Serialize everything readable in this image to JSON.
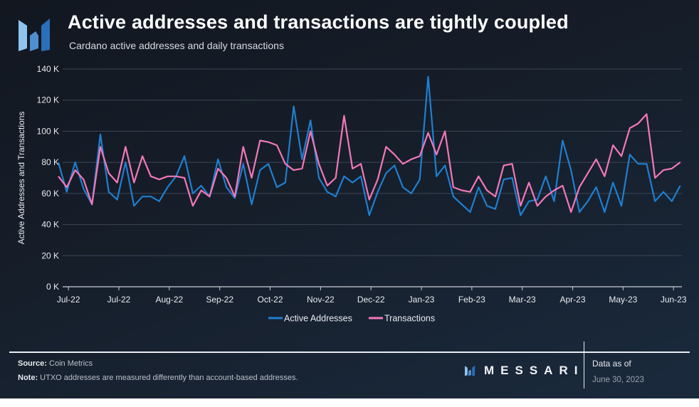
{
  "header": {
    "title": "Active addresses and transactions are tightly coupled",
    "subtitle": "Cardano active addresses and daily transactions"
  },
  "footer": {
    "source_label": "Source:",
    "source_value": "Coin Metrics",
    "note_label": "Note:",
    "note_value": "UTXO addresses are measured differently than account-based addresses.",
    "brand": "MESSARI",
    "data_as_of_label": "Data as of",
    "data_as_of_date": "June 30, 2023"
  },
  "chart_data": {
    "type": "line",
    "title": "Active addresses and transactions are tightly coupled",
    "subtitle": "Cardano active addresses and daily transactions",
    "xlabel": "",
    "ylabel": "Active Addresses and Transactions",
    "ylim": [
      0,
      140000
    ],
    "xlim": [
      "2022-06-25",
      "2023-07-01"
    ],
    "grid": true,
    "legend_position": "bottom",
    "y_ticks": [
      {
        "value": 0,
        "label": "0 K"
      },
      {
        "value": 20000,
        "label": "20 K"
      },
      {
        "value": 40000,
        "label": "40 K"
      },
      {
        "value": 60000,
        "label": "60 K"
      },
      {
        "value": 80000,
        "label": "80 K"
      },
      {
        "value": 100000,
        "label": "100 K"
      },
      {
        "value": 120000,
        "label": "120 K"
      },
      {
        "value": 140000,
        "label": "140 K"
      }
    ],
    "x_ticks": [
      {
        "date": "2022-07-01",
        "label": "Jul-22"
      },
      {
        "date": "2022-07-31",
        "label": "Jul-22"
      },
      {
        "date": "2022-08-30",
        "label": "Aug-22"
      },
      {
        "date": "2022-09-29",
        "label": "Sep-22"
      },
      {
        "date": "2022-10-29",
        "label": "Oct-22"
      },
      {
        "date": "2022-11-28",
        "label": "Nov-22"
      },
      {
        "date": "2022-12-28",
        "label": "Dec-22"
      },
      {
        "date": "2023-01-27",
        "label": "Jan-23"
      },
      {
        "date": "2023-02-26",
        "label": "Feb-23"
      },
      {
        "date": "2023-03-28",
        "label": "Mar-23"
      },
      {
        "date": "2023-04-27",
        "label": "Apr-23"
      },
      {
        "date": "2023-05-27",
        "label": "May-23"
      },
      {
        "date": "2023-06-26",
        "label": "Jun-23"
      }
    ],
    "x": [
      "2022-06-25",
      "2022-06-30",
      "2022-07-05",
      "2022-07-10",
      "2022-07-15",
      "2022-07-20",
      "2022-07-25",
      "2022-07-30",
      "2022-08-04",
      "2022-08-09",
      "2022-08-14",
      "2022-08-19",
      "2022-08-24",
      "2022-08-29",
      "2022-09-03",
      "2022-09-08",
      "2022-09-13",
      "2022-09-18",
      "2022-09-23",
      "2022-09-28",
      "2022-10-03",
      "2022-10-08",
      "2022-10-13",
      "2022-10-18",
      "2022-10-23",
      "2022-10-28",
      "2022-11-02",
      "2022-11-07",
      "2022-11-12",
      "2022-11-17",
      "2022-11-22",
      "2022-11-27",
      "2022-12-02",
      "2022-12-07",
      "2022-12-12",
      "2022-12-17",
      "2022-12-22",
      "2022-12-27",
      "2023-01-01",
      "2023-01-06",
      "2023-01-11",
      "2023-01-16",
      "2023-01-21",
      "2023-01-26",
      "2023-01-31",
      "2023-02-05",
      "2023-02-10",
      "2023-02-15",
      "2023-02-20",
      "2023-02-25",
      "2023-03-02",
      "2023-03-07",
      "2023-03-12",
      "2023-03-17",
      "2023-03-22",
      "2023-03-27",
      "2023-04-01",
      "2023-04-06",
      "2023-04-11",
      "2023-04-16",
      "2023-04-21",
      "2023-04-26",
      "2023-05-01",
      "2023-05-06",
      "2023-05-11",
      "2023-05-16",
      "2023-05-21",
      "2023-05-26",
      "2023-05-31",
      "2023-06-05",
      "2023-06-10",
      "2023-06-15",
      "2023-06-20",
      "2023-06-25",
      "2023-06-30"
    ],
    "series": [
      {
        "name": "Active Addresses",
        "color": "#1f7fd0",
        "values": [
          80000,
          61000,
          80000,
          63000,
          53000,
          98000,
          61000,
          56000,
          80000,
          52000,
          58000,
          58000,
          55000,
          64000,
          71000,
          84000,
          60000,
          65000,
          58000,
          82000,
          64000,
          57000,
          79000,
          53000,
          75000,
          79000,
          64000,
          67000,
          116000,
          82000,
          107000,
          70000,
          61000,
          58000,
          71000,
          67000,
          71000,
          46000,
          61000,
          73000,
          78000,
          64000,
          60000,
          69000,
          135000,
          71000,
          78000,
          58000,
          53000,
          48000,
          64000,
          52000,
          50000,
          69000,
          70000,
          46000,
          55000,
          56000,
          71000,
          55000,
          94000,
          75000,
          48000,
          55000,
          64000,
          48000,
          67000,
          52000,
          85000,
          79000,
          79000,
          55000,
          61000,
          55000,
          65000
        ]
      },
      {
        "name": "Transactions",
        "color": "#f278b8",
        "values": [
          71000,
          64000,
          75000,
          69000,
          53000,
          90000,
          73000,
          67000,
          90000,
          67000,
          84000,
          71000,
          69000,
          71000,
          71000,
          70000,
          52000,
          62000,
          58000,
          76000,
          70000,
          58000,
          90000,
          70000,
          94000,
          93000,
          91000,
          79000,
          75000,
          76000,
          100000,
          79000,
          65000,
          70000,
          110000,
          76000,
          79000,
          56000,
          69000,
          90000,
          85000,
          79000,
          82000,
          84000,
          99000,
          85000,
          100000,
          64000,
          62000,
          61000,
          71000,
          62000,
          58000,
          78000,
          79000,
          52000,
          67000,
          52000,
          58000,
          62000,
          65000,
          48000,
          64000,
          73000,
          82000,
          71000,
          91000,
          84000,
          102000,
          105000,
          111000,
          70000,
          75000,
          76000,
          80000
        ]
      }
    ]
  }
}
